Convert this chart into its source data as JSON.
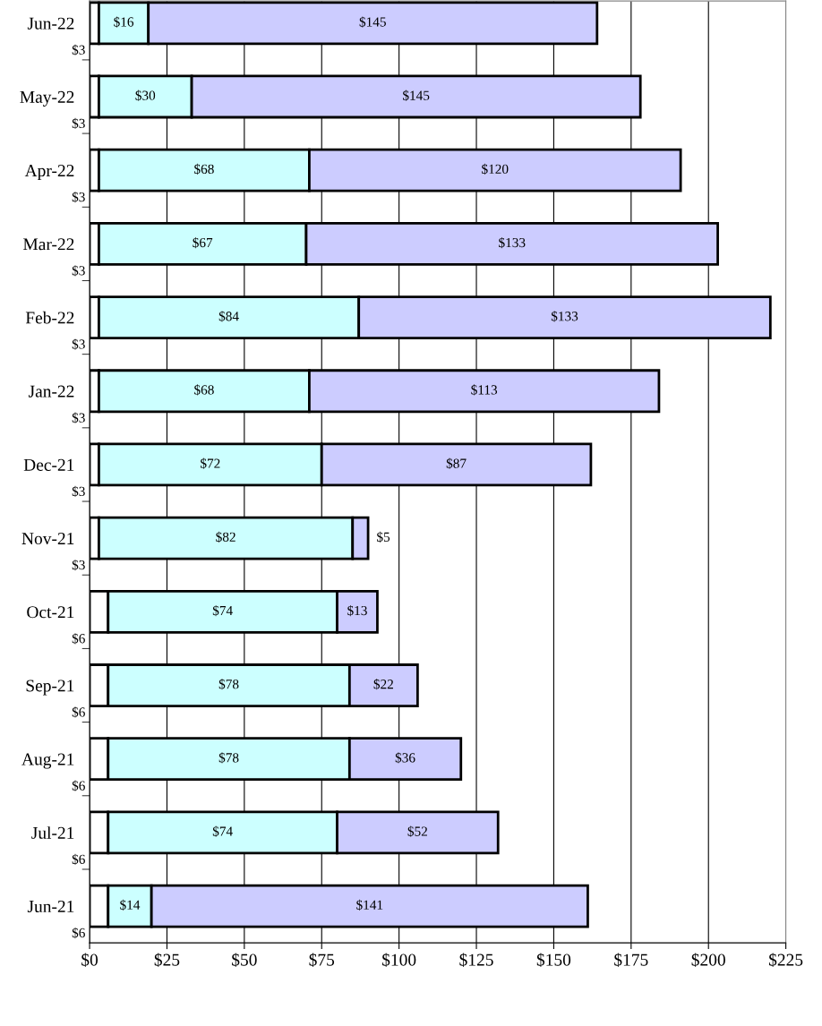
{
  "chart_data": {
    "type": "bar",
    "orientation": "horizontal",
    "stacked": true,
    "grid": "x",
    "legend": false,
    "categories": [
      "Jun-22",
      "May-22",
      "Apr-22",
      "Mar-22",
      "Feb-22",
      "Jan-22",
      "Dec-21",
      "Nov-21",
      "Oct-21",
      "Sep-21",
      "Aug-21",
      "Jul-21",
      "Jun-21"
    ],
    "xlim": [
      0,
      225
    ],
    "xticks": [
      {
        "value": 0,
        "label": "$0"
      },
      {
        "value": 25,
        "label": "$25"
      },
      {
        "value": 50,
        "label": "$50"
      },
      {
        "value": 75,
        "label": "$75"
      },
      {
        "value": 100,
        "label": "$100"
      },
      {
        "value": 125,
        "label": "$125"
      },
      {
        "value": 150,
        "label": "$150"
      },
      {
        "value": 175,
        "label": "$175"
      },
      {
        "value": 200,
        "label": "$200"
      },
      {
        "value": 225,
        "label": "$225"
      }
    ],
    "series": [
      {
        "color": "#ffffff",
        "values": [
          3,
          3,
          3,
          3,
          3,
          3,
          3,
          3,
          6,
          6,
          6,
          6,
          6
        ],
        "value_labels": [
          "$3",
          "$3",
          "$3",
          "$3",
          "$3",
          "$3",
          "$3",
          "$3",
          "$6",
          "$6",
          "$6",
          "$6",
          "$6"
        ]
      },
      {
        "color": "#ccffff",
        "values": [
          16,
          30,
          68,
          67,
          84,
          68,
          72,
          82,
          74,
          78,
          78,
          74,
          14
        ],
        "value_labels": [
          "$16",
          "$30",
          "$68",
          "$67",
          "$84",
          "$68",
          "$72",
          "$82",
          "$74",
          "$78",
          "$78",
          "$74",
          "$14"
        ]
      },
      {
        "color": "#ccccff",
        "values": [
          145,
          145,
          120,
          133,
          133,
          113,
          87,
          5,
          13,
          22,
          36,
          52,
          141
        ],
        "value_labels": [
          "$145",
          "$145",
          "$120",
          "$133",
          "$133",
          "$113",
          "$87",
          "$5",
          "$13",
          "$22",
          "$36",
          "$52",
          "$141"
        ]
      }
    ]
  }
}
